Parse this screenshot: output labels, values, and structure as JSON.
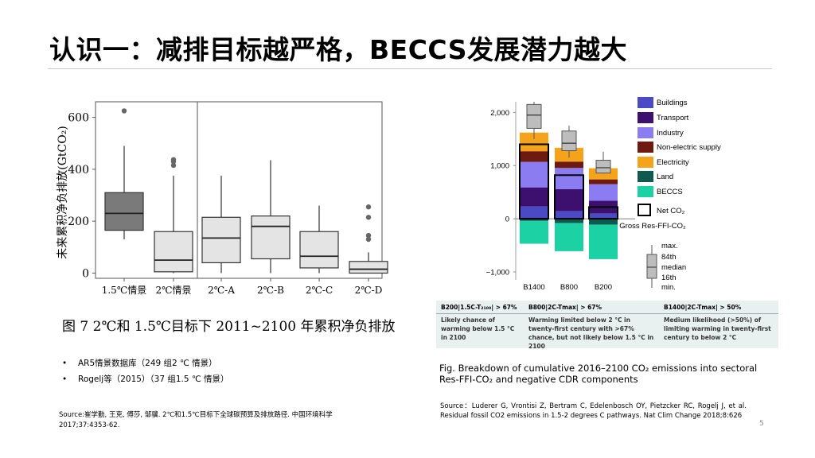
{
  "slide": {
    "title": "认识一：减排目标越严格，BECCS发展潜力越大",
    "page_number": "5"
  },
  "left_figure": {
    "caption": "图 7    2℃和 1.5℃目标下 2011~2100 年累积净负排放",
    "bullets": [
      "AR5情景数据库（249 组2 ℃ 情景）",
      "Rogelj等（2015）（37 组1.5 ℃ 情景）"
    ],
    "source": "Source:崔学勤, 王克, 傅莎, 邹骥. 2℃和1.5℃目标下全球碳预算及排放路径. 中国环境科学 2017;37:4353-62."
  },
  "right_figure": {
    "table": {
      "headers": [
        "B200|1.5C-T₂₁₀₀| > 67%",
        "B800|2C-Tmax| > 67%",
        "B1400|2C-Tmax| > 50%"
      ],
      "cells": [
        "Likely chance of warming below 1.5 °C in 2100",
        "Warming limited below 2 °C in twenty-first century with >67% chance, but not likely below 1.5 °C in 2100",
        "Medium likelihood (>50%) of limiting warming in twenty-first century to below 2 °C"
      ]
    },
    "caption_line1": "Fig. Breakdown of cumulative 2016–2100 CO₂ emissions into sectoral",
    "caption_line2": "Res-FFI-CO₂ and negative CDR components",
    "source": "Source：Luderer G, Vrontisi Z, Bertram C, Edelenbosch OY, Pietzcker RC, Rogelj J, et al. Residual fossil CO2 emissions in 1.5-2 degrees C pathways. Nat Clim Change 2018;8:626"
  },
  "chart_data": [
    {
      "type": "box",
      "ylabel": "未来累积净负排放(GtCO₂)",
      "ylim": [
        -20,
        660
      ],
      "yticks": [
        0,
        200,
        400,
        600
      ],
      "categories": [
        "1.5℃情景",
        "2℃情景",
        "2℃-A",
        "2℃-B",
        "2℃-C",
        "2℃-D"
      ],
      "boxes": [
        {
          "min": 130,
          "q1": 165,
          "median": 230,
          "q3": 310,
          "max": 490,
          "outliers": [
            625
          ]
        },
        {
          "min": 0,
          "q1": 5,
          "median": 50,
          "q3": 160,
          "max": 375,
          "outliers": [
            415,
            430,
            437
          ]
        },
        {
          "min": 0,
          "q1": 40,
          "median": 135,
          "q3": 215,
          "max": 375,
          "outliers": []
        },
        {
          "min": 0,
          "q1": 55,
          "median": 180,
          "q3": 220,
          "max": 435,
          "outliers": []
        },
        {
          "min": 0,
          "q1": 20,
          "median": 65,
          "q3": 160,
          "max": 260,
          "outliers": []
        },
        {
          "min": 0,
          "q1": 0,
          "median": 15,
          "q3": 45,
          "max": 80,
          "outliers": [
            130,
            145,
            215,
            255
          ]
        }
      ],
      "grid": false
    },
    {
      "type": "stacked-bar",
      "ylim": [
        -1150,
        2200
      ],
      "yticks": [
        -1000,
        0,
        1000,
        2000
      ],
      "ytick_labels": [
        "−1,000",
        "0",
        "1,000",
        "2,000"
      ],
      "categories": [
        "B1400",
        "B800",
        "B200"
      ],
      "series": [
        {
          "name": "Buildings",
          "color": "#4a4ac4",
          "values": [
            230,
            145,
            100
          ]
        },
        {
          "name": "Transport",
          "color": "#3d1070",
          "values": [
            360,
            410,
            240
          ]
        },
        {
          "name": "Industry",
          "color": "#8c7cf2",
          "values": [
            480,
            400,
            310
          ]
        },
        {
          "name": "Non-electric supply",
          "color": "#6e1a10",
          "values": [
            200,
            120,
            90
          ]
        },
        {
          "name": "Electricity",
          "color": "#f5a31a",
          "values": [
            350,
            260,
            210
          ]
        },
        {
          "name": "Land",
          "color": "#0f5a4e",
          "values": [
            -40,
            -80,
            -110
          ]
        },
        {
          "name": "BECCS",
          "color": "#1cd1a4",
          "values": [
            -430,
            -530,
            -650
          ]
        }
      ],
      "net_co2": [
        1400,
        820,
        220
      ],
      "gross_boxes": [
        {
          "min": 1500,
          "q1": 1700,
          "median": 1950,
          "q3": 2150,
          "max": 2200
        },
        {
          "min": 1150,
          "q1": 1280,
          "median": 1420,
          "q3": 1650,
          "max": 1750
        },
        {
          "min": 850,
          "q1": 860,
          "median": 960,
          "q3": 1100,
          "max": 1260
        }
      ],
      "legend_extra": [
        "Net CO₂",
        "Gross Res-FFI-CO₂",
        "max.",
        "84th",
        "median",
        "16th",
        "min."
      ],
      "legend_position": "right"
    }
  ]
}
